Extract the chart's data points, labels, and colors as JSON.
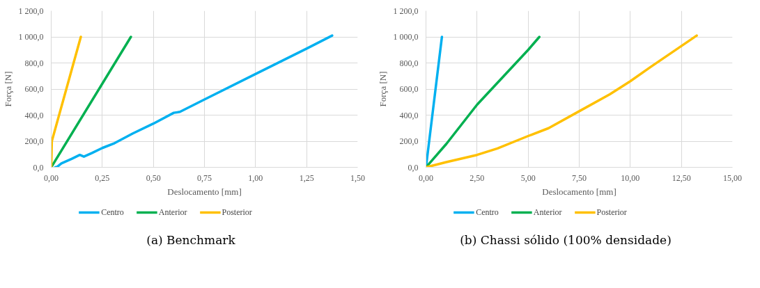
{
  "chart_data": [
    {
      "type": "line",
      "xlabel": "Deslocamento [mm]",
      "ylabel": "Força [N]",
      "xlim": [
        0,
        1.5
      ],
      "ylim": [
        0,
        1200
      ],
      "xticks": [
        {
          "value": 0,
          "label": "0,00"
        },
        {
          "value": 0.25,
          "label": "0,25"
        },
        {
          "value": 0.5,
          "label": "0,50"
        },
        {
          "value": 0.75,
          "label": "0,75"
        },
        {
          "value": 1,
          "label": "1,00"
        },
        {
          "value": 1.25,
          "label": "1,25"
        },
        {
          "value": 1.5,
          "label": "1,50"
        }
      ],
      "yticks": [
        {
          "value": 0,
          "label": "0,0"
        },
        {
          "value": 200,
          "label": "200,0"
        },
        {
          "value": 400,
          "label": "400,0"
        },
        {
          "value": 600,
          "label": "600,0"
        },
        {
          "value": 800,
          "label": "800,0"
        },
        {
          "value": 1000,
          "label": "1 000,0"
        },
        {
          "value": 1200,
          "label": "1 200,0"
        }
      ],
      "grid": true,
      "legend": "bottom",
      "marker": "none",
      "line_style": "solid",
      "series": [
        {
          "name": "Centro",
          "color": "#00b0f0",
          "x": [
            0.02,
            0.03,
            0.05,
            0.1,
            0.14,
            0.16,
            0.2,
            0.25,
            0.31,
            0.4,
            0.5,
            0.6,
            0.63,
            0.75,
            1.0,
            1.25,
            1.375
          ],
          "values": [
            0,
            5,
            30,
            65,
            95,
            82,
            110,
            148,
            185,
            260,
            335,
            418,
            425,
            520,
            715,
            910,
            1010
          ]
        },
        {
          "name": "Anterior",
          "color": "#00b050",
          "x": [
            0,
            0.39
          ],
          "values": [
            0,
            1000
          ]
        },
        {
          "name": "Posterior",
          "color": "#ffc000",
          "x": [
            0,
            0.003,
            0.145
          ],
          "values": [
            0,
            200,
            1000
          ]
        }
      ],
      "annotations": [
        "(a) Benchmark"
      ]
    },
    {
      "type": "line",
      "xlabel": "Deslocamento [mm]",
      "ylabel": "Força [N]",
      "xlim": [
        0,
        15
      ],
      "ylim": [
        0,
        1200
      ],
      "xticks": [
        {
          "value": 0,
          "label": "0,00"
        },
        {
          "value": 2.5,
          "label": "2,50"
        },
        {
          "value": 5,
          "label": "5,00"
        },
        {
          "value": 7.5,
          "label": "7,50"
        },
        {
          "value": 10,
          "label": "10,00"
        },
        {
          "value": 12.5,
          "label": "12,50"
        },
        {
          "value": 15,
          "label": "15,00"
        }
      ],
      "yticks": [
        {
          "value": 0,
          "label": "0,0"
        },
        {
          "value": 200,
          "label": "200,0"
        },
        {
          "value": 400,
          "label": "400,0"
        },
        {
          "value": 600,
          "label": "600,0"
        },
        {
          "value": 800,
          "label": "800,0"
        },
        {
          "value": 1000,
          "label": "1 000,0"
        },
        {
          "value": 1200,
          "label": "1 200,0"
        }
      ],
      "grid": true,
      "legend": "bottom",
      "marker": "none",
      "line_style": "solid",
      "series": [
        {
          "name": "Centro",
          "color": "#00b0f0",
          "x": [
            0,
            0.78
          ],
          "values": [
            0,
            1000
          ]
        },
        {
          "name": "Anterior",
          "color": "#00b050",
          "x": [
            0,
            1,
            2.5,
            5,
            5.55
          ],
          "values": [
            0,
            180,
            480,
            900,
            1000
          ]
        },
        {
          "name": "Posterior",
          "color": "#ffc000",
          "x": [
            0,
            1,
            2.5,
            3.5,
            5,
            6,
            7.5,
            9,
            10,
            11,
            12.5,
            13.25
          ],
          "values": [
            0,
            40,
            95,
            145,
            240,
            300,
            430,
            560,
            660,
            770,
            930,
            1010
          ]
        }
      ],
      "annotations": [
        "(b) Chassi sólido (100% densidade)"
      ]
    }
  ]
}
